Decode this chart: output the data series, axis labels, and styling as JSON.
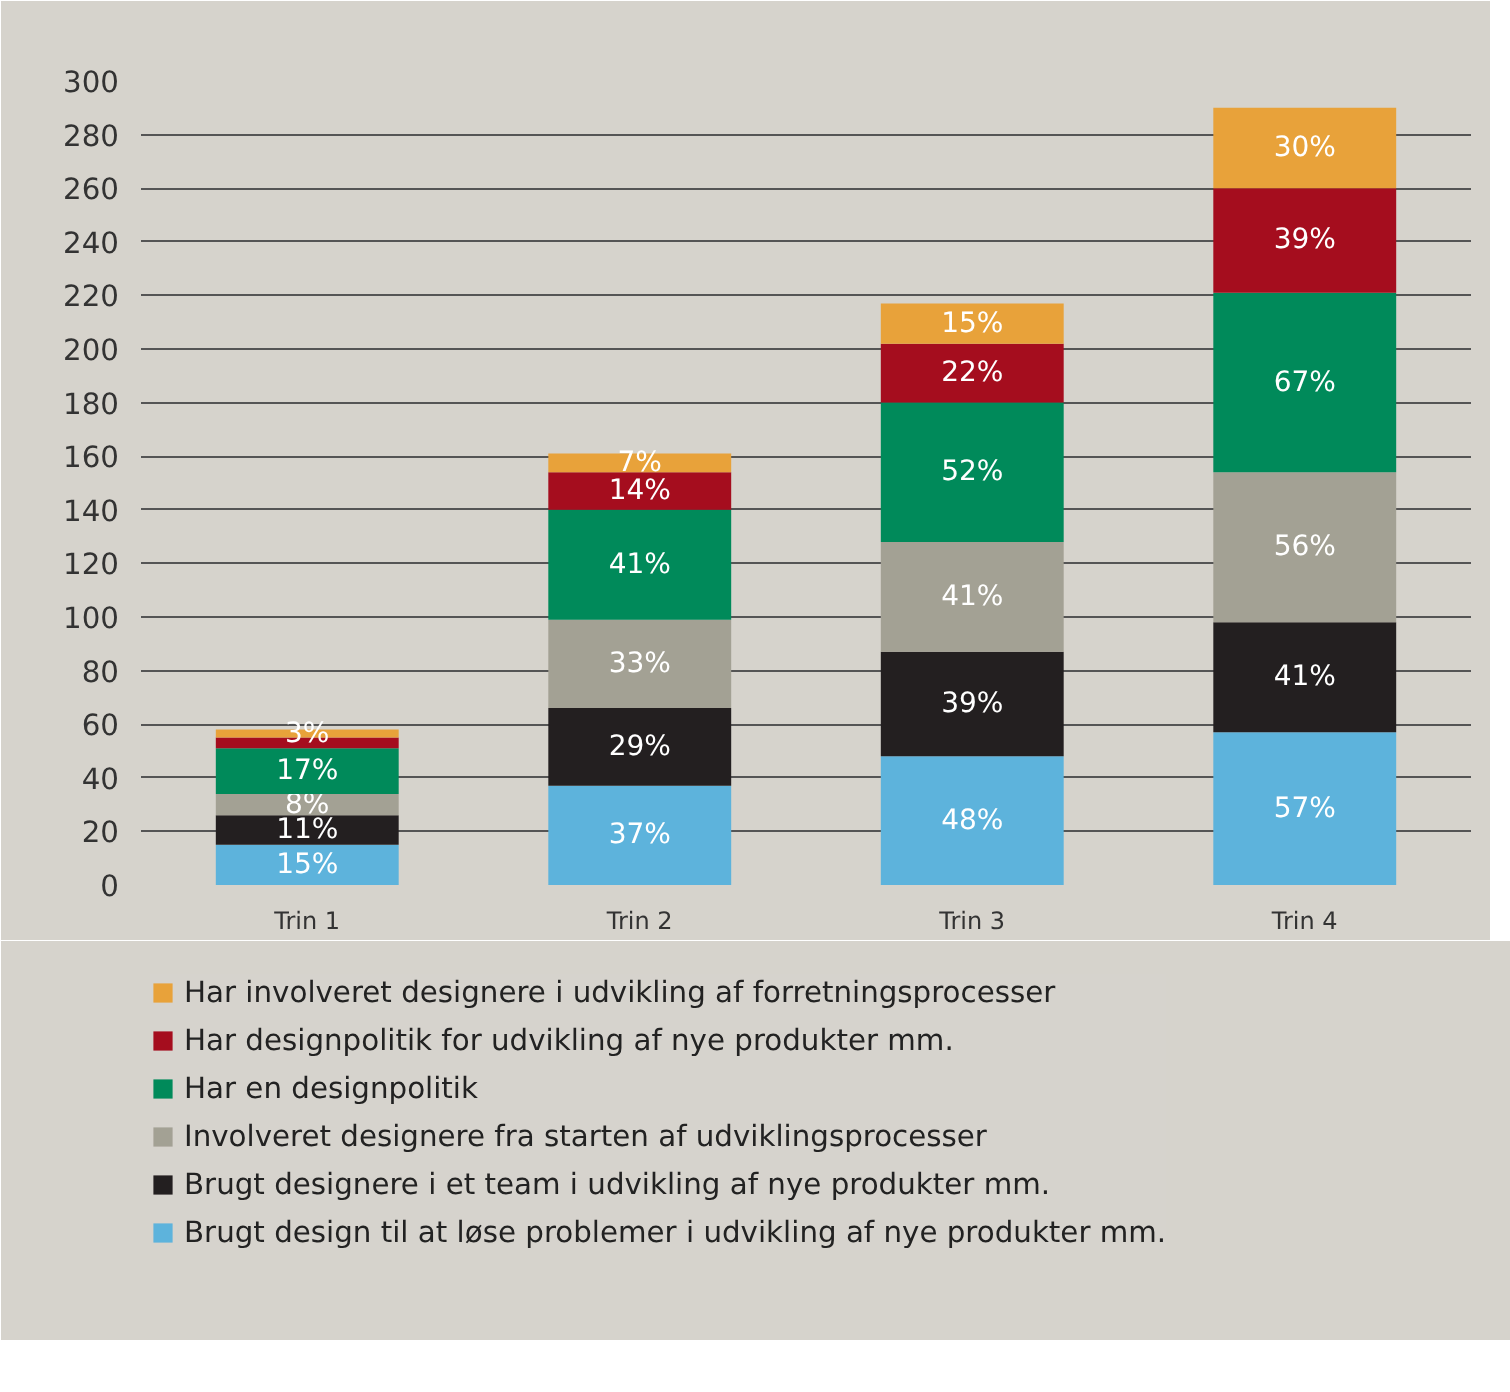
{
  "chart_data": {
    "type": "bar",
    "stacked": true,
    "categories": [
      "Trin 1",
      "Trin 2",
      "Trin 3",
      "Trin 4"
    ],
    "ylim": [
      0,
      300
    ],
    "yticks": [
      0,
      20,
      40,
      60,
      80,
      100,
      120,
      140,
      160,
      180,
      200,
      220,
      240,
      260,
      280,
      300
    ],
    "grid": "y",
    "legend": "bottom",
    "series": [
      {
        "name": "Brugt design til at løse problemer i udvikling af nye produkter mm.",
        "color": "#5db3dc",
        "values": [
          15,
          37,
          48,
          57
        ],
        "value_labels": [
          "15%",
          "37%",
          "48%",
          "57%"
        ]
      },
      {
        "name": "Brugt designere i et team i udvikling af nye produkter mm.",
        "color": "#231f20",
        "values": [
          11,
          29,
          39,
          41
        ],
        "value_labels": [
          "11%",
          "29%",
          "39%",
          "41%"
        ]
      },
      {
        "name": "Involveret designere fra starten af udviklingsprocesser",
        "color": "#a3a194",
        "values": [
          8,
          33,
          41,
          56
        ],
        "value_labels": [
          "8%",
          "33%",
          "41%",
          "56%"
        ]
      },
      {
        "name": "Har en designpolitik",
        "color": "#008a5a",
        "values": [
          17,
          41,
          52,
          67
        ],
        "value_labels": [
          "17%",
          "41%",
          "52%",
          "67%"
        ]
      },
      {
        "name": "Har designpolitik for udvikling af nye produkter mm.",
        "color": "#a50d1e",
        "values": [
          4,
          14,
          22,
          39
        ],
        "value_labels": [
          null,
          "14%",
          "22%",
          "39%"
        ]
      },
      {
        "name": "Har involveret designere i udvikling af forretningsprocesser",
        "color": "#e8a23a",
        "values": [
          3,
          7,
          15,
          30
        ],
        "value_labels": [
          "3%",
          "7%",
          "15%",
          "30%"
        ]
      }
    ]
  }
}
